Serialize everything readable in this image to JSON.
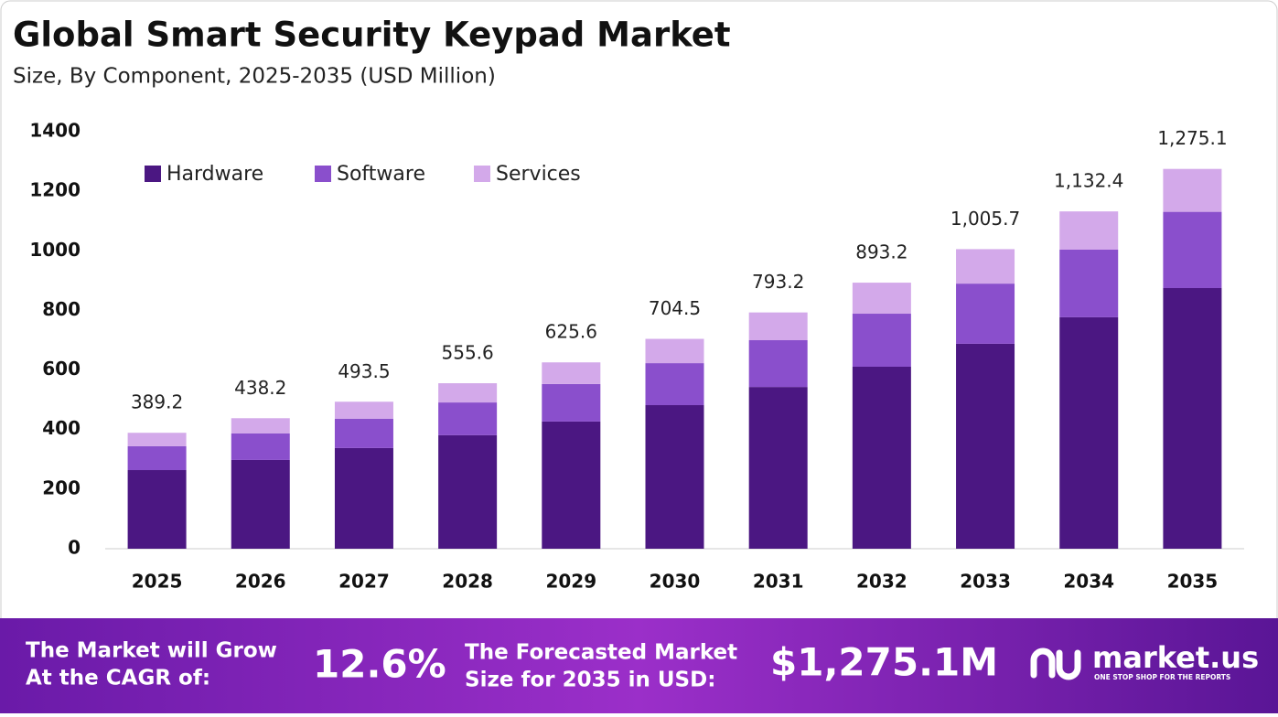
{
  "chart_data": {
    "type": "stacked_bar",
    "title": "Global Smart Security Keypad Market",
    "subtitle": "Size, By Component, 2025-2035 (USD Million)",
    "categories": [
      "2025",
      "2026",
      "2027",
      "2028",
      "2029",
      "2030",
      "2031",
      "2032",
      "2033",
      "2034",
      "2035"
    ],
    "series": [
      {
        "name": "Hardware",
        "color": "#4b1782",
        "values": [
          264,
          298,
          338,
          381,
          427,
          482,
          543,
          611,
          688,
          777,
          875
        ]
      },
      {
        "name": "Software",
        "color": "#8a4fcc",
        "values": [
          80,
          89,
          98,
          110,
          126,
          141,
          157,
          178,
          202,
          227,
          256
        ]
      },
      {
        "name": "Services",
        "color": "#d3a9ea",
        "values": [
          45.2,
          51.2,
          57.5,
          64.6,
          72.6,
          81.5,
          93.2,
          104.2,
          115.7,
          128.4,
          144.1
        ]
      }
    ],
    "totals": {
      "values": [
        389.2,
        438.2,
        493.5,
        555.6,
        625.6,
        704.5,
        793.2,
        893.2,
        1005.7,
        1132.4,
        1275.1
      ],
      "value_labels": [
        "389.2",
        "438.2",
        "493.5",
        "555.6",
        "625.6",
        "704.5",
        "793.2",
        "893.2",
        "1,005.7",
        "1,132.4",
        "1,275.1"
      ]
    },
    "ylim": [
      0,
      1400
    ],
    "yticks": [
      0,
      200,
      400,
      600,
      800,
      1000,
      1200,
      1400
    ],
    "grid": false,
    "legend": "top-left"
  },
  "banner": {
    "cagr_text": [
      "The Market will Grow",
      "At the CAGR of:"
    ],
    "cagr_value": "12.6%",
    "forecast_text": [
      "The Forecasted Market",
      "Size for 2035 in USD:"
    ],
    "forecast_value": "$1,275.1M",
    "logo": "market.us",
    "tagline": "ONE STOP SHOP FOR THE REPORTS"
  }
}
